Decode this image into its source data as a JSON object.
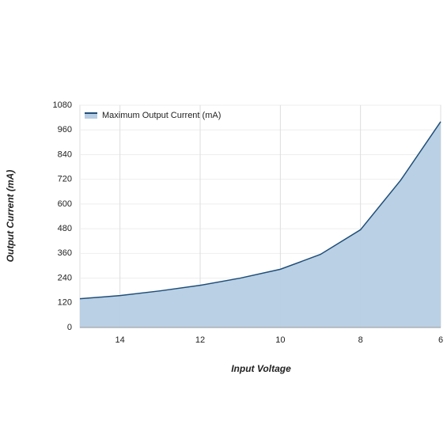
{
  "chart_data": {
    "type": "area",
    "x_label": "Input Voltage",
    "y_label": "Output Current (mA)",
    "x": [
      15,
      14,
      13,
      12,
      11,
      10,
      9,
      8,
      7,
      6
    ],
    "series": [
      {
        "name": "Maximum Output Current (mA)",
        "color": "#1f4e79",
        "fill": "#b6cde3",
        "values": [
          140,
          155,
          178,
          205,
          240,
          283,
          355,
          475,
          715,
          1000
        ]
      }
    ],
    "xlim": [
      15,
      6
    ],
    "xticks": [
      14,
      12,
      10,
      8,
      6
    ],
    "ylim": [
      0,
      1080
    ],
    "yticks": [
      0,
      120,
      240,
      360,
      480,
      600,
      720,
      840,
      960,
      1080
    ],
    "grid": true,
    "legend": "top-left"
  }
}
